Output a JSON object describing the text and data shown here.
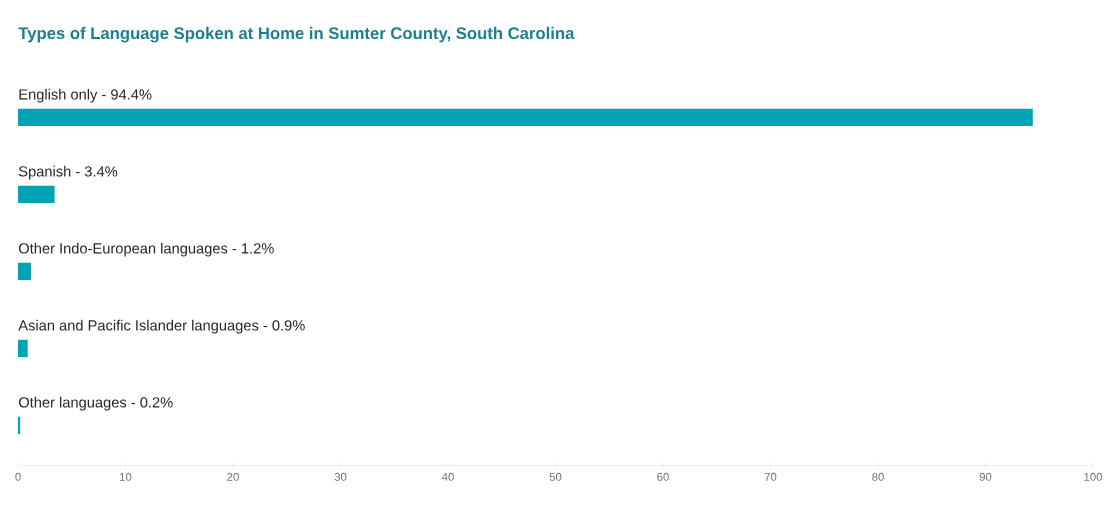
{
  "chart_data": {
    "type": "bar",
    "orientation": "horizontal",
    "title": "Types of Language Spoken at Home in Sumter County, South Carolina",
    "categories": [
      "English only - 94.4%",
      "Spanish - 3.4%",
      "Other Indo-European languages - 1.2%",
      "Asian and Pacific Islander languages - 0.9%",
      "Other languages - 0.2%"
    ],
    "values": [
      94.4,
      3.4,
      1.2,
      0.9,
      0.2
    ],
    "color": "#00a3b4",
    "xlim": [
      0,
      100
    ],
    "xticks": [
      0,
      10,
      20,
      30,
      40,
      50,
      60,
      70,
      80,
      90,
      100
    ],
    "grid": false
  }
}
